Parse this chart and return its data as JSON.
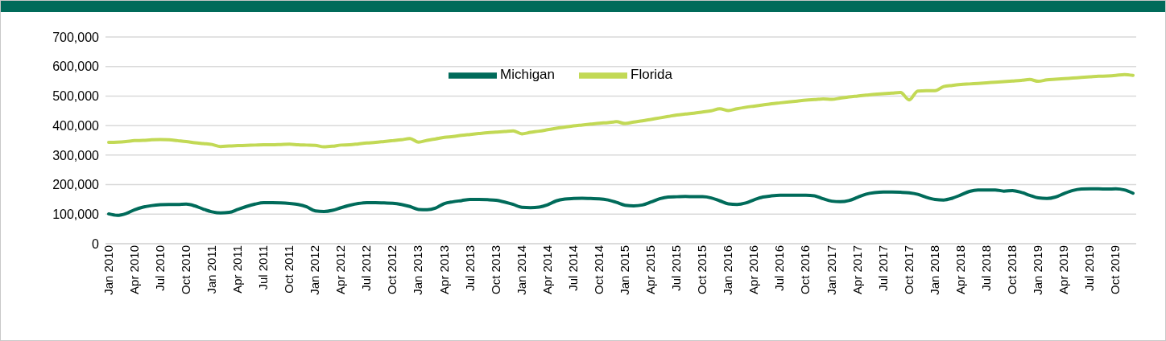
{
  "chart_data": {
    "type": "line",
    "categories": [
      "Jan 2010",
      null,
      null,
      "Apr 2010",
      null,
      null,
      "Jul 2010",
      null,
      null,
      "Oct 2010",
      null,
      null,
      "Jan 2011",
      null,
      null,
      "Apr 2011",
      null,
      null,
      "Jul 2011",
      null,
      null,
      "Oct 2011",
      null,
      null,
      "Jan 2012",
      null,
      null,
      "Apr 2012",
      null,
      null,
      "Jul 2012",
      null,
      null,
      "Oct 2012",
      null,
      null,
      "Jan 2013",
      null,
      null,
      "Apr 2013",
      null,
      null,
      "Jul 2013",
      null,
      null,
      "Oct 2013",
      null,
      null,
      "Jan 2014",
      null,
      null,
      "Apr 2014",
      null,
      null,
      "Jul 2014",
      null,
      null,
      "Oct 2014",
      null,
      null,
      "Jan 2015",
      null,
      null,
      "Apr 2015",
      null,
      null,
      "Jul 2015",
      null,
      null,
      "Oct 2015",
      null,
      null,
      "Jan 2016",
      null,
      null,
      "Apr 2016",
      null,
      null,
      "Jul 2016",
      null,
      null,
      "Oct 2016",
      null,
      null,
      "Jan 2017",
      null,
      null,
      "Apr 2017",
      null,
      null,
      "Jul 2017",
      null,
      null,
      "Oct 2017",
      null,
      null,
      "Jan 2018",
      null,
      null,
      "Apr 2018",
      null,
      null,
      "Jul 2018",
      null,
      null,
      "Oct 2018",
      null,
      null,
      "Jan 2019",
      null,
      null,
      "Apr 2019",
      null,
      null,
      "Jul 2019",
      null,
      null,
      "Oct 2019",
      null,
      null
    ],
    "series": [
      {
        "name": "Michigan",
        "color": "#006b5a",
        "values": [
          101000,
          96000,
          102000,
          115000,
          124000,
          129000,
          132000,
          133000,
          133000,
          134000,
          128000,
          117000,
          108000,
          104000,
          106000,
          116000,
          126000,
          134000,
          139000,
          139000,
          138000,
          136000,
          133000,
          125000,
          111000,
          109000,
          113000,
          122000,
          130000,
          136000,
          139000,
          139000,
          138000,
          137000,
          133000,
          126000,
          116000,
          115000,
          121000,
          136000,
          142000,
          146000,
          150000,
          150000,
          149000,
          147000,
          141000,
          133000,
          123000,
          122000,
          124000,
          132000,
          145000,
          151000,
          153000,
          154000,
          153000,
          152000,
          148000,
          140000,
          130000,
          128000,
          131000,
          141000,
          152000,
          158000,
          159000,
          160000,
          159000,
          159000,
          155000,
          145000,
          135000,
          133000,
          138000,
          149000,
          158000,
          162000,
          164000,
          164000,
          164000,
          164000,
          162000,
          152000,
          144000,
          142000,
          146000,
          157000,
          168000,
          173000,
          175000,
          175000,
          174000,
          172000,
          167000,
          157000,
          150000,
          148000,
          154000,
          165000,
          177000,
          182000,
          182000,
          182000,
          178000,
          180000,
          174000,
          164000,
          155000,
          153000,
          158000,
          170000,
          180000,
          185000,
          186000,
          186000,
          185000,
          186000,
          182000,
          171000
        ]
      },
      {
        "name": "Florida",
        "color": "#c2d955",
        "values": [
          343000,
          344000,
          346000,
          349000,
          350000,
          352000,
          353000,
          352000,
          349000,
          346000,
          342000,
          339000,
          336000,
          329000,
          331000,
          332000,
          333000,
          334000,
          335000,
          335000,
          336000,
          337000,
          335000,
          334000,
          333000,
          328000,
          330000,
          334000,
          335000,
          338000,
          341000,
          343000,
          346000,
          349000,
          352000,
          356000,
          344000,
          350000,
          355000,
          360000,
          363000,
          367000,
          370000,
          373000,
          376000,
          378000,
          380000,
          382000,
          372000,
          377000,
          381000,
          386000,
          391000,
          395000,
          399000,
          402000,
          405000,
          408000,
          410000,
          413000,
          407000,
          412000,
          416000,
          421000,
          426000,
          431000,
          436000,
          439000,
          442000,
          446000,
          450000,
          457000,
          451000,
          457000,
          462000,
          466000,
          470000,
          474000,
          477000,
          480000,
          483000,
          486000,
          488000,
          490000,
          489000,
          493000,
          497000,
          500000,
          503000,
          506000,
          508000,
          510000,
          512000,
          487000,
          517000,
          518000,
          518000,
          532000,
          536000,
          539000,
          541000,
          543000,
          545000,
          547000,
          549000,
          551000,
          553000,
          556000,
          550000,
          555000,
          557000,
          559000,
          561000,
          563000,
          565000,
          567000,
          568000,
          570000,
          573000,
          570000
        ]
      }
    ],
    "ylim": [
      0,
      700000
    ],
    "yticks": [
      0,
      {
        "value": 100000,
        "label": "100,000"
      },
      {
        "value": 200000,
        "label": "200,000"
      },
      {
        "value": 300000,
        "label": "300,000"
      },
      {
        "value": 400000,
        "label": "400,000"
      },
      {
        "value": 500000,
        "label": "500,000"
      },
      {
        "value": 600000,
        "label": "600,000"
      },
      {
        "value": 700000,
        "label": "700,000"
      }
    ],
    "grid": "y",
    "legend": "top",
    "marker": "none",
    "line_style": "solid"
  }
}
